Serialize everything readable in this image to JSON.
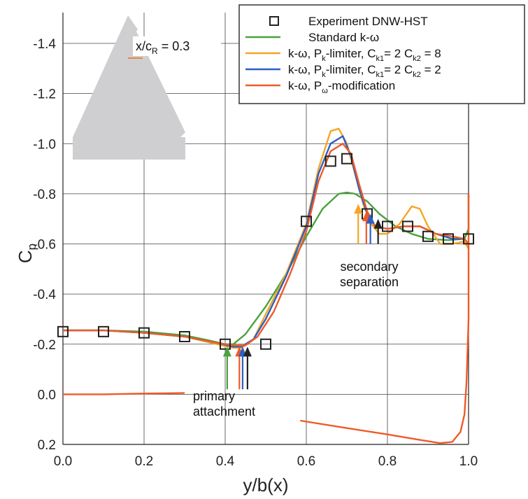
{
  "chart_data": {
    "type": "line",
    "xlabel": "y/b(x)",
    "ylabel": "Cp",
    "ylabel_main": "C",
    "ylabel_sub": "p",
    "xlim": [
      0.0,
      1.0
    ],
    "ylim": [
      0.2,
      -1.5
    ],
    "y_inverted": true,
    "grid": true,
    "xticks": [
      0.0,
      0.2,
      0.4,
      0.6,
      0.8,
      1.0
    ],
    "xtick_labels": [
      "0.0",
      "0.2",
      "0.4",
      "0.6",
      "0.8",
      "1.0"
    ],
    "yticks": [
      -1.4,
      -1.2,
      -1.0,
      -0.8,
      -0.6,
      -0.4,
      -0.2,
      0.0,
      0.2
    ],
    "ytick_labels": [
      "-1.4",
      "-1.2",
      "-1.0",
      "-0.8",
      "-0.6",
      "-0.4",
      "-0.2",
      "0.0",
      "0.2"
    ],
    "legend_position": "top-right",
    "inset": {
      "label": "x/c",
      "label_sub": "R",
      "label_value": " = 0.3"
    },
    "experiment": {
      "name": "Experiment DNW-HST",
      "marker": "square",
      "color": "#222222",
      "x": [
        0.0,
        0.1,
        0.2,
        0.3,
        0.4,
        0.5,
        0.6,
        0.66,
        0.7,
        0.75,
        0.8,
        0.85,
        0.9,
        0.95,
        1.0
      ],
      "y": [
        -0.25,
        -0.25,
        -0.245,
        -0.23,
        -0.2,
        -0.2,
        -0.69,
        -0.93,
        -0.94,
        -0.72,
        -0.67,
        -0.67,
        -0.63,
        -0.62,
        -0.62
      ]
    },
    "series": [
      {
        "name_parts": [
          [
            "Standard k-",
            ""
          ],
          [
            "ω",
            ""
          ]
        ],
        "color": "#4aa33c",
        "x": [
          0.0,
          0.1,
          0.2,
          0.3,
          0.36,
          0.4,
          0.42,
          0.45,
          0.5,
          0.55,
          0.6,
          0.64,
          0.68,
          0.7,
          0.72,
          0.75,
          0.78,
          0.82,
          0.86,
          0.9,
          0.95,
          0.99,
          1.0,
          1.0
        ],
        "y": [
          -0.255,
          -0.255,
          -0.25,
          -0.235,
          -0.215,
          -0.2,
          -0.2,
          -0.24,
          -0.35,
          -0.48,
          -0.63,
          -0.74,
          -0.8,
          -0.805,
          -0.8,
          -0.77,
          -0.72,
          -0.67,
          -0.64,
          -0.62,
          -0.615,
          -0.62,
          -0.66,
          -0.8
        ]
      },
      {
        "name_parts": [
          [
            "k-",
            ""
          ],
          [
            "ω",
            ""
          ],
          [
            ", P",
            ""
          ],
          [
            "k",
            "sub"
          ],
          [
            "-limiter, C",
            ""
          ],
          [
            "k1",
            "sub"
          ],
          [
            "= 2 C",
            ""
          ],
          [
            "k2",
            "sub"
          ],
          [
            " = 8",
            ""
          ]
        ],
        "color": "#f5a623",
        "x": [
          0.0,
          0.1,
          0.2,
          0.3,
          0.38,
          0.42,
          0.44,
          0.47,
          0.5,
          0.55,
          0.6,
          0.63,
          0.66,
          0.68,
          0.7,
          0.72,
          0.74,
          0.76,
          0.78,
          0.8,
          0.83,
          0.86,
          0.88,
          0.9,
          0.93,
          0.96,
          0.99,
          1.0
        ],
        "y": [
          -0.255,
          -0.255,
          -0.245,
          -0.23,
          -0.2,
          -0.185,
          -0.185,
          -0.22,
          -0.32,
          -0.48,
          -0.68,
          -0.9,
          -1.05,
          -1.06,
          -1.0,
          -0.88,
          -0.76,
          -0.68,
          -0.64,
          -0.64,
          -0.68,
          -0.75,
          -0.74,
          -0.67,
          -0.6,
          -0.6,
          -0.61,
          -0.58
        ]
      },
      {
        "name_parts": [
          [
            "k-",
            ""
          ],
          [
            "ω",
            ""
          ],
          [
            ", P",
            ""
          ],
          [
            "k",
            "sub"
          ],
          [
            "-limiter, C",
            ""
          ],
          [
            "k1",
            "sub"
          ],
          [
            "= 2 C",
            ""
          ],
          [
            "k2",
            "sub"
          ],
          [
            " = 2",
            ""
          ]
        ],
        "color": "#2c5fc4",
        "x": [
          0.0,
          0.1,
          0.2,
          0.3,
          0.38,
          0.42,
          0.44,
          0.47,
          0.5,
          0.55,
          0.6,
          0.63,
          0.66,
          0.69,
          0.71,
          0.73,
          0.75,
          0.77,
          0.8,
          0.84,
          0.88,
          0.92,
          0.96,
          0.99,
          1.0
        ],
        "y": [
          -0.255,
          -0.255,
          -0.245,
          -0.23,
          -0.205,
          -0.19,
          -0.19,
          -0.22,
          -0.3,
          -0.47,
          -0.67,
          -0.88,
          -1.0,
          -1.03,
          -0.95,
          -0.82,
          -0.72,
          -0.67,
          -0.66,
          -0.67,
          -0.67,
          -0.64,
          -0.62,
          -0.62,
          -0.6
        ]
      },
      {
        "name_parts": [
          [
            "k-",
            ""
          ],
          [
            "ω",
            ""
          ],
          [
            ", P",
            ""
          ],
          [
            "ω",
            "sub"
          ],
          [
            "-modification",
            ""
          ]
        ],
        "color": "#ef5a28",
        "x": [
          0.0,
          0.1,
          0.2,
          0.3,
          0.38,
          0.42,
          0.45,
          0.48,
          0.52,
          0.56,
          0.6,
          0.63,
          0.66,
          0.69,
          0.71,
          0.73,
          0.75,
          0.77,
          0.8,
          0.84,
          0.88,
          0.92,
          0.96,
          0.99,
          1.0
        ],
        "y": [
          -0.255,
          -0.255,
          -0.245,
          -0.23,
          -0.205,
          -0.195,
          -0.195,
          -0.23,
          -0.33,
          -0.48,
          -0.65,
          -0.85,
          -0.97,
          -1.0,
          -0.96,
          -0.84,
          -0.73,
          -0.67,
          -0.66,
          -0.67,
          -0.67,
          -0.64,
          -0.63,
          -0.62,
          -0.6
        ]
      }
    ],
    "pressure_side": {
      "color": "#ef5a28",
      "segments": [
        {
          "x": [
            0.0,
            0.1,
            0.2,
            0.3
          ],
          "y": [
            0.0,
            0.0,
            -0.003,
            -0.005
          ]
        },
        {
          "x": [
            0.585,
            0.7,
            0.8,
            0.88,
            0.93,
            0.96,
            0.98,
            0.99,
            0.995,
            1.0,
            1.0
          ],
          "y": [
            0.105,
            0.135,
            0.16,
            0.182,
            0.195,
            0.19,
            0.15,
            0.08,
            -0.05,
            -0.3,
            -0.8
          ]
        }
      ]
    },
    "annotations": [
      {
        "name": "primary",
        "lines": [
          "primary",
          "attachment"
        ]
      },
      {
        "name": "secondary",
        "lines": [
          "secondary",
          "separation"
        ]
      }
    ],
    "arrows": [
      {
        "group": "primary",
        "x": 0.405,
        "tip": -0.19,
        "tail": -0.02,
        "color": "#4aa33c"
      },
      {
        "group": "primary",
        "x": 0.435,
        "tip": -0.19,
        "tail": -0.02,
        "color": "#ef5a28"
      },
      {
        "group": "primary",
        "x": 0.443,
        "tip": -0.19,
        "tail": -0.02,
        "color": "#2c5fc4"
      },
      {
        "group": "primary",
        "x": 0.455,
        "tip": -0.19,
        "tail": -0.02,
        "color": "#222222"
      },
      {
        "group": "secondary",
        "x": 0.728,
        "tip": -0.76,
        "tail": -0.6,
        "color": "#f5a623"
      },
      {
        "group": "secondary",
        "x": 0.748,
        "tip": -0.73,
        "tail": -0.6,
        "color": "#ef5a28"
      },
      {
        "group": "secondary",
        "x": 0.758,
        "tip": -0.72,
        "tail": -0.6,
        "color": "#2c5fc4"
      },
      {
        "group": "secondary",
        "x": 0.777,
        "tip": -0.7,
        "tail": -0.6,
        "color": "#222222"
      }
    ]
  }
}
